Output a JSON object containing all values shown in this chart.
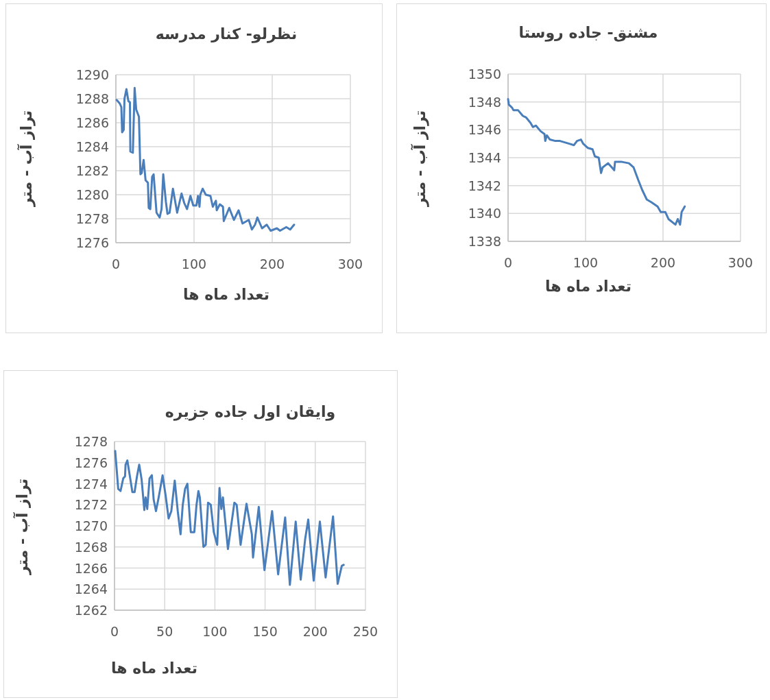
{
  "chart_data": [
    {
      "type": "line",
      "title": "نظرلو- کنار مدرسه",
      "xlabel": "تعداد ماه ها",
      "ylabel": "تراز آب - متر",
      "xlim": [
        0,
        300
      ],
      "xticks": [
        0,
        100,
        200,
        300
      ],
      "ylim": [
        1276,
        1290
      ],
      "yticks": [
        1276,
        1278,
        1280,
        1282,
        1284,
        1286,
        1288,
        1290
      ],
      "grid": true,
      "series": [
        {
          "color": "#4a7ebb",
          "x": [
            1,
            5,
            7,
            8,
            10,
            11,
            13.5,
            16,
            18,
            18.5,
            21.7,
            24,
            26,
            29.5,
            31.4,
            33,
            35.5,
            38,
            41,
            42,
            44,
            46.4,
            48.3,
            52,
            56,
            58.4,
            60.6,
            64,
            66,
            68.7,
            73,
            78.4,
            84,
            87.5,
            91,
            95.4,
            99,
            103,
            105,
            107,
            108,
            111,
            115,
            121,
            124,
            128,
            129,
            133,
            137,
            138,
            145,
            151,
            157,
            162,
            170,
            174,
            178,
            181,
            187,
            193,
            198,
            206,
            210,
            218,
            223,
            228
          ],
          "values": [
            1287.9,
            1287.6,
            1287.3,
            1285.2,
            1285.4,
            1288.0,
            1288.8,
            1287.8,
            1287.7,
            1283.6,
            1283.5,
            1288.9,
            1287.1,
            1286.5,
            1281.7,
            1281.8,
            1282.9,
            1281.2,
            1281.0,
            1278.9,
            1278.8,
            1281.5,
            1281.7,
            1278.5,
            1278.1,
            1278.8,
            1281.7,
            1279.4,
            1278.4,
            1278.5,
            1280.5,
            1278.5,
            1280.1,
            1279.3,
            1278.8,
            1279.9,
            1279.1,
            1279.1,
            1279.9,
            1279.0,
            1280.0,
            1280.5,
            1280.0,
            1279.9,
            1279.0,
            1279.5,
            1278.7,
            1279.2,
            1279.0,
            1277.8,
            1278.9,
            1277.9,
            1278.7,
            1277.6,
            1277.9,
            1277.1,
            1277.5,
            1278.1,
            1277.2,
            1277.5,
            1277.0,
            1277.2,
            1277.0,
            1277.3,
            1277.1,
            1277.5
          ]
        }
      ]
    },
    {
      "type": "line",
      "title": "مشنق- جاده روستا",
      "xlabel": "تعداد ماه ها",
      "ylabel": "تراز آب - متر",
      "xlim": [
        0,
        300
      ],
      "xticks": [
        0,
        100,
        200,
        300
      ],
      "ylim": [
        1338,
        1350
      ],
      "yticks": [
        1338,
        1340,
        1342,
        1344,
        1346,
        1348,
        1350
      ],
      "grid": true,
      "series": [
        {
          "color": "#4a7ebb",
          "x": [
            0,
            1,
            5,
            7,
            13,
            19,
            23,
            29,
            32,
            36,
            42,
            47,
            48,
            50,
            54,
            61,
            67,
            73,
            79,
            85,
            89,
            94,
            97,
            103,
            109,
            112,
            117,
            120,
            122,
            129,
            134,
            137,
            138,
            147,
            156,
            162,
            168,
            173,
            179,
            185,
            193,
            197,
            203,
            207,
            216,
            219,
            222,
            224,
            228
          ],
          "values": [
            1348.2,
            1347.8,
            1347.6,
            1347.4,
            1347.4,
            1347.0,
            1346.9,
            1346.5,
            1346.2,
            1346.3,
            1345.9,
            1345.7,
            1345.2,
            1345.6,
            1345.3,
            1345.2,
            1345.2,
            1345.1,
            1345.0,
            1344.9,
            1345.2,
            1345.3,
            1345.0,
            1344.7,
            1344.6,
            1344.1,
            1344.0,
            1342.9,
            1343.3,
            1343.6,
            1343.3,
            1343.1,
            1343.7,
            1343.7,
            1343.6,
            1343.3,
            1342.4,
            1341.7,
            1341.0,
            1340.8,
            1340.5,
            1340.1,
            1340.1,
            1339.6,
            1339.2,
            1339.6,
            1339.2,
            1340.1,
            1340.5
          ]
        }
      ]
    },
    {
      "type": "line",
      "title": "وایقان اول جاده جزیره",
      "xlabel": "تعداد ماه ها",
      "ylabel": "تراز آب - متر",
      "xlim": [
        0,
        250
      ],
      "xticks": [
        0,
        50,
        100,
        150,
        200,
        250
      ],
      "ylim": [
        1262,
        1278
      ],
      "yticks": [
        1262,
        1264,
        1266,
        1268,
        1270,
        1272,
        1274,
        1276,
        1278
      ],
      "grid": true,
      "series": [
        {
          "color": "#4a7ebb",
          "x": [
            0.7,
            3.7,
            6,
            8.7,
            10.5,
            11,
            12.8,
            15.5,
            17.8,
            20,
            22.4,
            24.6,
            27,
            29.7,
            31,
            32.6,
            34.9,
            37.2,
            39,
            41.3,
            44,
            47.9,
            50.9,
            53.9,
            56.6,
            60,
            63,
            65.8,
            68,
            70.3,
            72.6,
            76,
            79.5,
            81.7,
            83.6,
            85,
            88.6,
            90.9,
            93.2,
            95.9,
            98.9,
            102.3,
            104.6,
            106.4,
            108,
            113,
            119.4,
            121.7,
            125.6,
            131.5,
            136.8,
            138,
            143.7,
            149.4,
            157,
            163,
            170,
            174.7,
            180.5,
            185.5,
            190,
            193,
            198.4,
            204.6,
            210.3,
            217.7,
            222.3,
            226.4,
            228.3
          ],
          "values": [
            1277.1,
            1273.5,
            1273.3,
            1274.5,
            1274.7,
            1275.8,
            1276.2,
            1274.6,
            1273.2,
            1273.2,
            1274.7,
            1275.8,
            1274.4,
            1271.5,
            1272.7,
            1271.6,
            1274.5,
            1274.8,
            1272.5,
            1271.4,
            1272.7,
            1274.8,
            1272.9,
            1270.7,
            1271.4,
            1274.3,
            1271.4,
            1269.2,
            1272.0,
            1273.5,
            1274.0,
            1269.4,
            1269.4,
            1272.0,
            1273.3,
            1272.7,
            1268.0,
            1268.2,
            1272.2,
            1272.0,
            1269.4,
            1268.2,
            1273.6,
            1271.6,
            1272.7,
            1267.8,
            1272.2,
            1272.0,
            1268.2,
            1272.1,
            1269.2,
            1267.0,
            1271.8,
            1265.8,
            1271.4,
            1265.4,
            1270.8,
            1264.4,
            1270.4,
            1264.9,
            1268.8,
            1270.6,
            1264.8,
            1270.4,
            1265.1,
            1270.9,
            1264.5,
            1266.2,
            1266.3
          ]
        }
      ]
    }
  ]
}
